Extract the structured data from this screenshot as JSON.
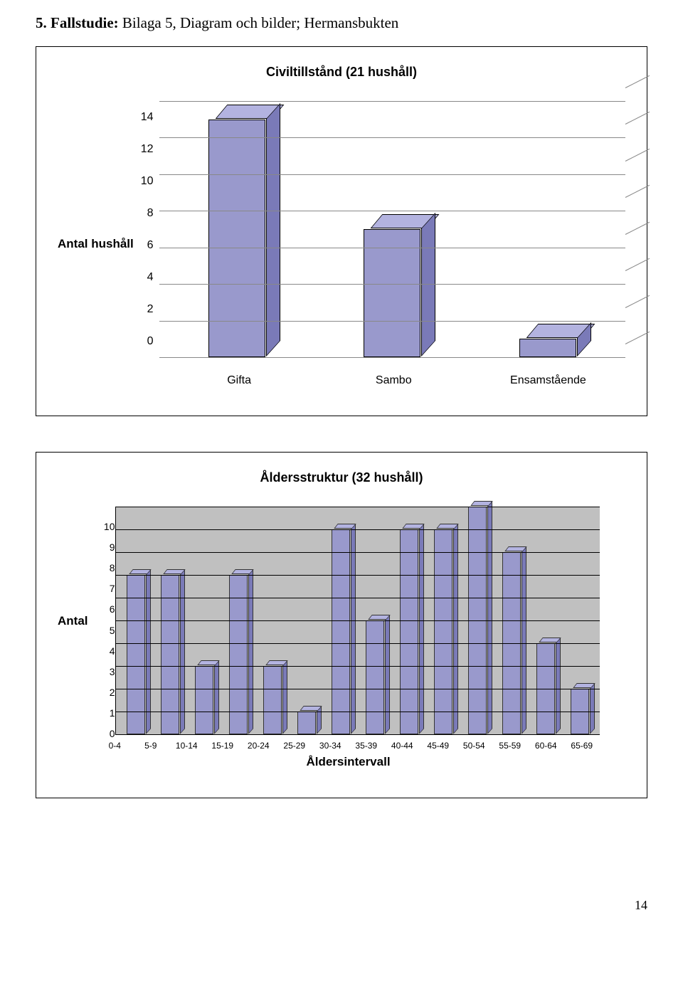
{
  "heading_prefix_bold": "5. Fallstudie:",
  "heading_rest": " Bilaga 5, Diagram och bilder; Hermansbukten",
  "chart1": {
    "type": "bar3d",
    "title": "Civiltillstånd (21 hushåll)",
    "ylabel": "Antal hushåll",
    "ylim": [
      0,
      14
    ],
    "ytick_step": 2,
    "yticks": [
      "14",
      "12",
      "10",
      "8",
      "6",
      "4",
      "2",
      "0"
    ],
    "categories": [
      "Gifta",
      "Sambo",
      "Ensamstående"
    ],
    "values": [
      13,
      7,
      1
    ],
    "bar_color": "#9999cc",
    "bar_top_color": "#b3b3e0",
    "bar_side_color": "#7a7ab8",
    "grid_color": "#888888",
    "background_color": "#ffffff",
    "title_fontsize": 18,
    "label_fontsize": 17,
    "tick_fontsize": 16
  },
  "chart2": {
    "type": "bar3d",
    "title": "Åldersstruktur (32 hushåll)",
    "ylabel": "Antal",
    "xlabel": "Åldersintervall",
    "ylim": [
      0,
      10
    ],
    "ytick_step": 1,
    "yticks": [
      "0",
      "1",
      "2",
      "3",
      "4",
      "5",
      "6",
      "7",
      "8",
      "9",
      "10"
    ],
    "categories": [
      "0-4",
      "5-9",
      "10-14",
      "15-19",
      "20-24",
      "25-29",
      "30-34",
      "35-39",
      "40-44",
      "45-49",
      "50-54",
      "55-59",
      "60-64",
      "65-69"
    ],
    "values": [
      7,
      7,
      3,
      7,
      3,
      1,
      9,
      5,
      9,
      9,
      10,
      8,
      4,
      2
    ],
    "bar_color": "#9999cc",
    "bar_top_color": "#b3b3e0",
    "bar_side_color": "#7a7ab8",
    "plot_background": "#c0c0c0",
    "grid_color": "#000000",
    "title_fontsize": 18,
    "label_fontsize": 17,
    "tick_fontsize": 14,
    "xtick_fontsize": 12
  },
  "page_number": "14"
}
